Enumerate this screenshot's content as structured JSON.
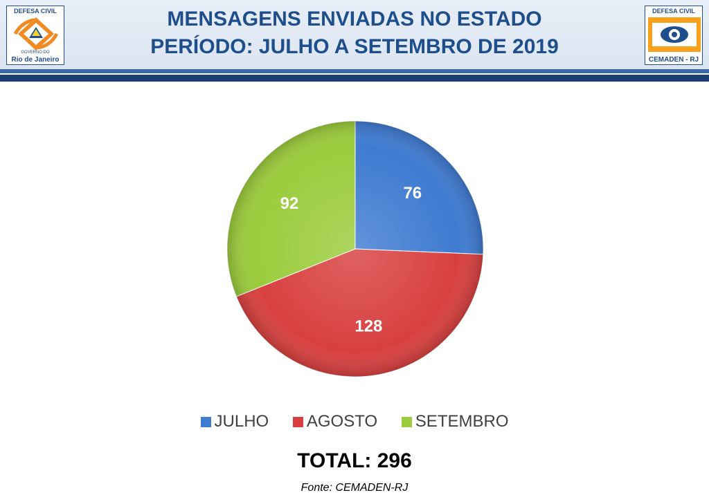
{
  "header": {
    "title_line1": "MENSAGENS ENVIADAS NO ESTADO",
    "title_line2": "PERÍODO: JULHO A SETEMBRO DE 2019",
    "logo_left": {
      "top_text": "DEFESA CIVIL",
      "bottom_small": "GOVERNO DO",
      "bottom_text": "Rio de Janeiro"
    },
    "logo_right": {
      "top_text": "DEFESA CIVIL",
      "bottom_text": "CEMADEN - RJ"
    }
  },
  "chart_data": {
    "type": "pie",
    "categories": [
      "JULHO",
      "AGOSTO",
      "SETEMBRO"
    ],
    "values": [
      76,
      128,
      92
    ],
    "colors": [
      "#3f7bd1",
      "#d84040",
      "#9bcc3c"
    ],
    "legend_position": "bottom"
  },
  "footer": {
    "total": "TOTAL: 296",
    "source": "Fonte: CEMADEN-RJ"
  }
}
